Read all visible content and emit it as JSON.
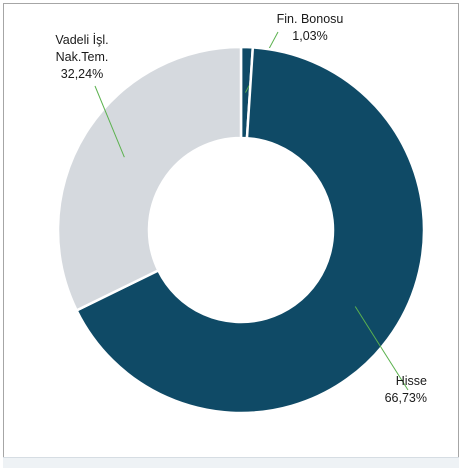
{
  "chart_data": {
    "type": "pie",
    "donut": true,
    "title": "",
    "slices": [
      {
        "name_lines": [
          "Fin. Bonosu"
        ],
        "value_label": "1,03%",
        "value": 1.03,
        "color": "#0f4a66"
      },
      {
        "name_lines": [
          "Hisse"
        ],
        "value_label": "66,73%",
        "value": 66.73,
        "color": "#0f4a66"
      },
      {
        "name_lines": [
          "Vadeli İşl.",
          "Nak.Tem."
        ],
        "value_label": "32,24%",
        "value": 32.24,
        "color": "#d5d9de"
      }
    ],
    "start_angle_deg": 0,
    "direction": "clockwise",
    "leader_color": "#5cb24f",
    "separator_color": "#ffffff"
  }
}
